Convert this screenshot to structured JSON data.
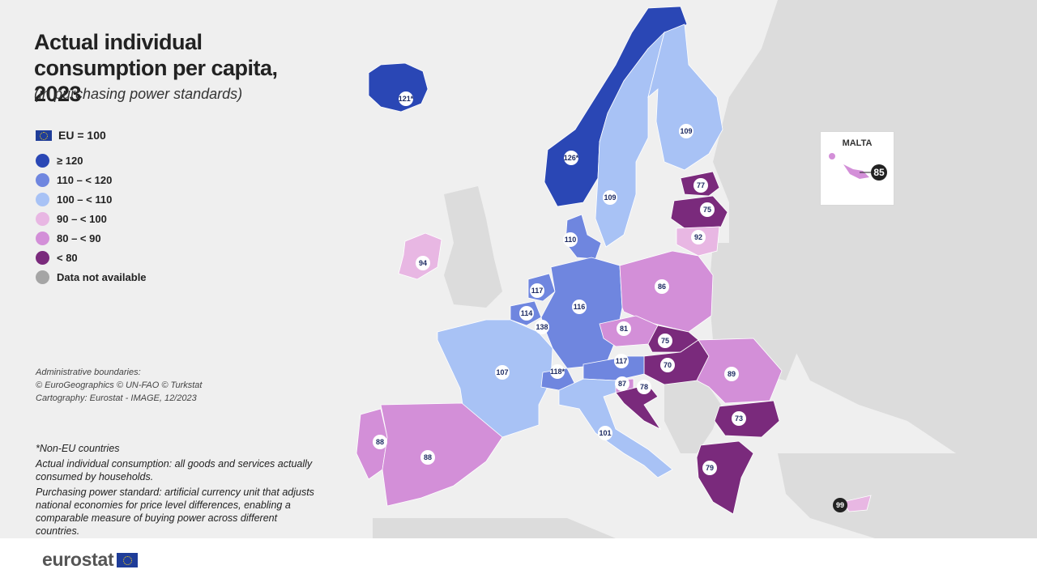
{
  "title": "Actual individual consumption per capita, 2023",
  "subtitle": "(in purchasing power standards)",
  "legend": {
    "eu_label": "EU = 100",
    "items": [
      {
        "label": "≥ 120",
        "color": "#2a47b5"
      },
      {
        "label": "110 – < 120",
        "color": "#6f86df"
      },
      {
        "label": "100 – < 110",
        "color": "#a8c2f5"
      },
      {
        "label": "90 – < 100",
        "color": "#e8b7e3"
      },
      {
        "label": "80 – < 90",
        "color": "#d38fd8"
      },
      {
        "label": "< 80",
        "color": "#7a2a7c"
      },
      {
        "label": "Data not available",
        "color": "#a5a5a5"
      }
    ]
  },
  "admin_lines": [
    "Administrative boundaries:",
    "© EuroGeographics © UN-FAO © Turkstat",
    "Cartography: Eurostat - IMAGE, 12/2023"
  ],
  "notes": [
    "*Non-EU countries",
    "Actual individual consumption: all goods and services actually consumed by households.",
    "Purchasing power standard: artificial currency unit that adjusts national economies for price level differences, enabling a comparable measure of buying power across different countries."
  ],
  "logo_text": "eurostat",
  "inset": {
    "title": "MALTA",
    "value": "85",
    "color": "#d38fd8"
  },
  "countries": [
    {
      "name": "Iceland",
      "value": "121*",
      "color": "#2a47b5"
    },
    {
      "name": "Norway",
      "value": "126*",
      "color": "#2a47b5"
    },
    {
      "name": "Sweden",
      "value": "109",
      "color": "#a8c2f5"
    },
    {
      "name": "Finland",
      "value": "109",
      "color": "#a8c2f5"
    },
    {
      "name": "Estonia",
      "value": "77",
      "color": "#7a2a7c"
    },
    {
      "name": "Latvia",
      "value": "75",
      "color": "#7a2a7c"
    },
    {
      "name": "Lithuania",
      "value": "92",
      "color": "#e8b7e3"
    },
    {
      "name": "Denmark",
      "value": "110",
      "color": "#6f86df"
    },
    {
      "name": "Ireland",
      "value": "94",
      "color": "#e8b7e3"
    },
    {
      "name": "Netherlands",
      "value": "117",
      "color": "#6f86df"
    },
    {
      "name": "Belgium",
      "value": "114",
      "color": "#6f86df"
    },
    {
      "name": "Luxembourg",
      "value": "138",
      "color": "#2a47b5"
    },
    {
      "name": "Germany",
      "value": "116",
      "color": "#6f86df"
    },
    {
      "name": "Poland",
      "value": "86",
      "color": "#d38fd8"
    },
    {
      "name": "Czechia",
      "value": "81",
      "color": "#d38fd8"
    },
    {
      "name": "Slovakia",
      "value": "75",
      "color": "#7a2a7c"
    },
    {
      "name": "Hungary",
      "value": "70",
      "color": "#7a2a7c"
    },
    {
      "name": "Romania",
      "value": "89",
      "color": "#d38fd8"
    },
    {
      "name": "Bulgaria",
      "value": "73",
      "color": "#7a2a7c"
    },
    {
      "name": "Greece",
      "value": "79",
      "color": "#7a2a7c"
    },
    {
      "name": "France",
      "value": "107",
      "color": "#a8c2f5"
    },
    {
      "name": "Switzerland",
      "value": "118*",
      "color": "#6f86df"
    },
    {
      "name": "Austria",
      "value": "117",
      "color": "#6f86df"
    },
    {
      "name": "Slovenia",
      "value": "87",
      "color": "#d38fd8"
    },
    {
      "name": "Croatia",
      "value": "78",
      "color": "#7a2a7c"
    },
    {
      "name": "Italy",
      "value": "101",
      "color": "#a8c2f5"
    },
    {
      "name": "Portugal",
      "value": "88",
      "color": "#d38fd8"
    },
    {
      "name": "Spain",
      "value": "88",
      "color": "#d38fd8"
    },
    {
      "name": "Cyprus",
      "value": "99",
      "color": "#e8b7e3"
    }
  ]
}
